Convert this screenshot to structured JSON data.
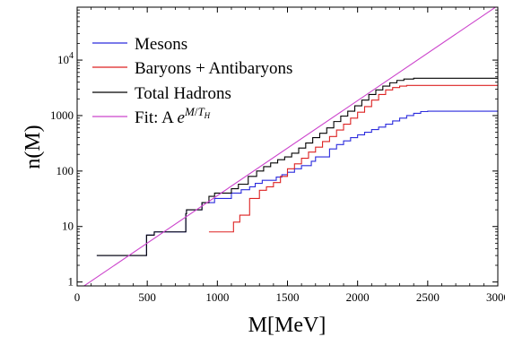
{
  "chart_data": {
    "type": "line",
    "xlabel": "M[MeV]",
    "ylabel": "n(M)",
    "xlim": [
      0,
      3000
    ],
    "ylim": [
      0.85,
      90000
    ],
    "yscale": "log",
    "grid": false,
    "legend_position": "top-left",
    "x_ticks": [
      0,
      500,
      1000,
      1500,
      2000,
      2500,
      3000
    ],
    "x_tick_labels": [
      "0",
      "500",
      "1000",
      "1500",
      "2000",
      "2500",
      "3000"
    ],
    "y_ticks": [
      1,
      10,
      100,
      1000,
      10000
    ],
    "y_tick_labels": [
      "1",
      "10",
      "100",
      "1000",
      "10^4"
    ],
    "series": [
      {
        "name": "Mesons",
        "color": "#2b2bdd",
        "style": "step",
        "points": [
          [
            140,
            3
          ],
          [
            495,
            3
          ],
          [
            495,
            7
          ],
          [
            550,
            7
          ],
          [
            550,
            8
          ],
          [
            775,
            8
          ],
          [
            775,
            17
          ],
          [
            780,
            17
          ],
          [
            780,
            20
          ],
          [
            890,
            20
          ],
          [
            890,
            27
          ],
          [
            980,
            27
          ],
          [
            980,
            32
          ],
          [
            1100,
            32
          ],
          [
            1100,
            40
          ],
          [
            1170,
            40
          ],
          [
            1170,
            46
          ],
          [
            1230,
            46
          ],
          [
            1230,
            52
          ],
          [
            1270,
            52
          ],
          [
            1270,
            60
          ],
          [
            1320,
            60
          ],
          [
            1320,
            68
          ],
          [
            1420,
            68
          ],
          [
            1420,
            78
          ],
          [
            1460,
            78
          ],
          [
            1460,
            86
          ],
          [
            1500,
            86
          ],
          [
            1500,
            95
          ],
          [
            1550,
            95
          ],
          [
            1550,
            110
          ],
          [
            1600,
            110
          ],
          [
            1600,
            125
          ],
          [
            1670,
            125
          ],
          [
            1670,
            150
          ],
          [
            1700,
            150
          ],
          [
            1700,
            180
          ],
          [
            1800,
            180
          ],
          [
            1800,
            250
          ],
          [
            1850,
            250
          ],
          [
            1850,
            300
          ],
          [
            1900,
            300
          ],
          [
            1900,
            350
          ],
          [
            1950,
            350
          ],
          [
            1950,
            400
          ],
          [
            2000,
            400
          ],
          [
            2000,
            450
          ],
          [
            2050,
            450
          ],
          [
            2050,
            500
          ],
          [
            2100,
            500
          ],
          [
            2100,
            560
          ],
          [
            2150,
            560
          ],
          [
            2150,
            620
          ],
          [
            2200,
            620
          ],
          [
            2200,
            700
          ],
          [
            2250,
            700
          ],
          [
            2250,
            800
          ],
          [
            2300,
            800
          ],
          [
            2300,
            900
          ],
          [
            2350,
            900
          ],
          [
            2350,
            1000
          ],
          [
            2400,
            1000
          ],
          [
            2400,
            1100
          ],
          [
            2450,
            1100
          ],
          [
            2450,
            1180
          ],
          [
            2500,
            1180
          ],
          [
            2500,
            1200
          ],
          [
            3000,
            1200
          ]
        ]
      },
      {
        "name": "Baryons + Antibaryons",
        "color": "#dd2222",
        "style": "step",
        "points": [
          [
            940,
            8
          ],
          [
            1115,
            8
          ],
          [
            1115,
            12
          ],
          [
            1160,
            12
          ],
          [
            1160,
            16
          ],
          [
            1230,
            16
          ],
          [
            1230,
            32
          ],
          [
            1300,
            32
          ],
          [
            1300,
            45
          ],
          [
            1350,
            45
          ],
          [
            1350,
            52
          ],
          [
            1400,
            52
          ],
          [
            1400,
            62
          ],
          [
            1450,
            62
          ],
          [
            1450,
            80
          ],
          [
            1500,
            80
          ],
          [
            1500,
            110
          ],
          [
            1550,
            110
          ],
          [
            1550,
            135
          ],
          [
            1600,
            135
          ],
          [
            1600,
            170
          ],
          [
            1650,
            170
          ],
          [
            1650,
            220
          ],
          [
            1700,
            220
          ],
          [
            1700,
            270
          ],
          [
            1750,
            270
          ],
          [
            1750,
            340
          ],
          [
            1800,
            340
          ],
          [
            1800,
            420
          ],
          [
            1850,
            420
          ],
          [
            1850,
            550
          ],
          [
            1900,
            550
          ],
          [
            1900,
            700
          ],
          [
            1950,
            700
          ],
          [
            1950,
            900
          ],
          [
            2000,
            900
          ],
          [
            2000,
            1150
          ],
          [
            2050,
            1150
          ],
          [
            2050,
            1450
          ],
          [
            2100,
            1450
          ],
          [
            2100,
            1900
          ],
          [
            2150,
            1900
          ],
          [
            2150,
            2400
          ],
          [
            2200,
            2400
          ],
          [
            2200,
            2900
          ],
          [
            2250,
            2900
          ],
          [
            2250,
            3200
          ],
          [
            2300,
            3200
          ],
          [
            2300,
            3400
          ],
          [
            2350,
            3400
          ],
          [
            2350,
            3500
          ],
          [
            3000,
            3500
          ]
        ]
      },
      {
        "name": "Total Hadrons",
        "color": "#000000",
        "style": "step",
        "points": [
          [
            140,
            3
          ],
          [
            495,
            3
          ],
          [
            495,
            7
          ],
          [
            550,
            7
          ],
          [
            550,
            8
          ],
          [
            775,
            8
          ],
          [
            775,
            17
          ],
          [
            780,
            17
          ],
          [
            780,
            20
          ],
          [
            890,
            20
          ],
          [
            890,
            27
          ],
          [
            940,
            27
          ],
          [
            940,
            35
          ],
          [
            980,
            35
          ],
          [
            980,
            40
          ],
          [
            1100,
            40
          ],
          [
            1100,
            48
          ],
          [
            1150,
            48
          ],
          [
            1150,
            58
          ],
          [
            1220,
            58
          ],
          [
            1220,
            80
          ],
          [
            1280,
            80
          ],
          [
            1280,
            100
          ],
          [
            1330,
            100
          ],
          [
            1330,
            120
          ],
          [
            1380,
            120
          ],
          [
            1380,
            140
          ],
          [
            1430,
            140
          ],
          [
            1430,
            160
          ],
          [
            1480,
            160
          ],
          [
            1480,
            180
          ],
          [
            1530,
            180
          ],
          [
            1530,
            210
          ],
          [
            1580,
            210
          ],
          [
            1580,
            260
          ],
          [
            1630,
            260
          ],
          [
            1630,
            320
          ],
          [
            1680,
            320
          ],
          [
            1680,
            400
          ],
          [
            1730,
            400
          ],
          [
            1730,
            480
          ],
          [
            1780,
            480
          ],
          [
            1780,
            600
          ],
          [
            1830,
            600
          ],
          [
            1830,
            780
          ],
          [
            1880,
            780
          ],
          [
            1880,
            980
          ],
          [
            1930,
            980
          ],
          [
            1930,
            1200
          ],
          [
            1980,
            1200
          ],
          [
            1980,
            1500
          ],
          [
            2030,
            1500
          ],
          [
            2030,
            1900
          ],
          [
            2080,
            1900
          ],
          [
            2080,
            2400
          ],
          [
            2130,
            2400
          ],
          [
            2130,
            2900
          ],
          [
            2180,
            2900
          ],
          [
            2180,
            3400
          ],
          [
            2230,
            3400
          ],
          [
            2230,
            3900
          ],
          [
            2280,
            3900
          ],
          [
            2280,
            4300
          ],
          [
            2330,
            4300
          ],
          [
            2330,
            4550
          ],
          [
            2400,
            4550
          ],
          [
            2400,
            4700
          ],
          [
            3000,
            4700
          ]
        ]
      },
      {
        "name": "Fit: A e^{M/T_H}",
        "color": "#cc44cc",
        "style": "line",
        "points": [
          [
            0,
            0.7
          ],
          [
            3000,
            96000
          ]
        ]
      }
    ]
  }
}
